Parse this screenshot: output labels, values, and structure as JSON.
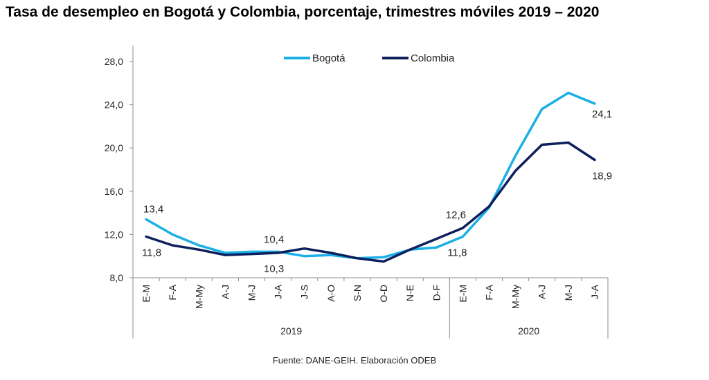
{
  "title": "Tasa de desempleo en Bogotá y Colombia, porcentaje, trimestres móviles 2019 – 2020",
  "source": "Fuente: DANE-GEIH. Elaboración ODEB",
  "colors": {
    "bogota": "#1AAFE6",
    "colombia": "#0D1F5C",
    "axis": "#8C8C8C"
  },
  "chart_data": {
    "type": "line",
    "title": "Tasa de desempleo en Bogotá y Colombia, porcentaje, trimestres móviles 2019 – 2020",
    "categories": [
      "E-M",
      "F-A",
      "M-My",
      "A-J",
      "M-J",
      "J-A",
      "J-S",
      "A-O",
      "S-N",
      "O-D",
      "N-E",
      "D-F",
      "E-M",
      "F-A",
      "M-My",
      "A-J",
      "M-J",
      "J-A"
    ],
    "groups": [
      {
        "label": "2019",
        "count": 12
      },
      {
        "label": "2020",
        "count": 6
      }
    ],
    "series": [
      {
        "name": "Bogotá",
        "values": [
          13.4,
          12.0,
          11.0,
          10.3,
          10.4,
          10.4,
          10.0,
          10.1,
          9.8,
          9.9,
          10.6,
          10.8,
          11.8,
          14.5,
          19.3,
          23.6,
          25.1,
          24.1
        ]
      },
      {
        "name": "Colombia",
        "values": [
          11.8,
          11.0,
          10.6,
          10.1,
          10.2,
          10.3,
          10.7,
          10.3,
          9.8,
          9.5,
          10.6,
          11.6,
          12.6,
          14.6,
          17.9,
          20.3,
          20.5,
          18.9
        ]
      }
    ],
    "yticks": [
      "8,0",
      "12,0",
      "16,0",
      "20,0",
      "24,0",
      "28,0"
    ],
    "ylim": [
      8,
      29
    ],
    "legend": "top-center",
    "annotations": [
      {
        "text": "13,4",
        "series": 0,
        "index": 0
      },
      {
        "text": "11,8",
        "series": 1,
        "index": 0
      },
      {
        "text": "10,4",
        "series": 0,
        "index": 5
      },
      {
        "text": "10,3",
        "series": 1,
        "index": 5
      },
      {
        "text": "12,6",
        "series": 1,
        "index": 12
      },
      {
        "text": "11,8",
        "series": 0,
        "index": 12
      },
      {
        "text": "24,1",
        "series": 0,
        "index": 17
      },
      {
        "text": "18,9",
        "series": 1,
        "index": 17
      }
    ]
  }
}
